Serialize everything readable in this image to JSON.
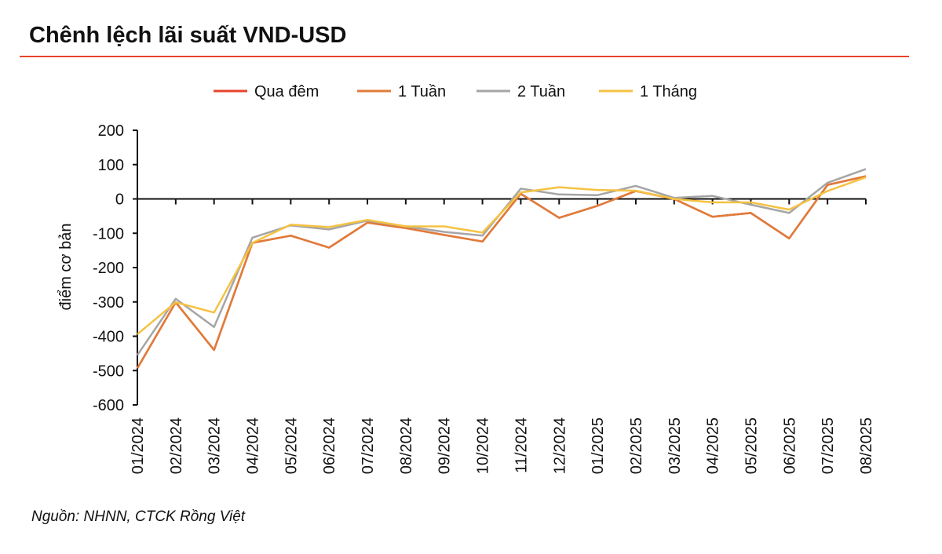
{
  "chart_data": {
    "type": "line",
    "title": "Chênh lệch lãi suất VND-USD",
    "ylabel": "điểm cơ bản",
    "xlabel": "",
    "ylim": [
      -600,
      200
    ],
    "yticks": [
      200,
      100,
      0,
      -100,
      -200,
      -300,
      -400,
      -500,
      -600
    ],
    "legend_position": "top",
    "grid": false,
    "categories": [
      "01/2024",
      "02/2024",
      "03/2024",
      "04/2024",
      "05/2024",
      "06/2024",
      "07/2024",
      "08/2024",
      "09/2024",
      "10/2024",
      "11/2024",
      "12/2024",
      "01/2025",
      "02/2025",
      "03/2025",
      "04/2025",
      "05/2025",
      "06/2025",
      "07/2025",
      "08/2025"
    ],
    "series": [
      {
        "name": "Qua đêm",
        "color": "#e8432d",
        "values": [
          -493,
          -301,
          -440,
          -128,
          -107,
          -142,
          -69,
          -85,
          -105,
          -124,
          15,
          -55,
          -20,
          23,
          0,
          -52,
          -41,
          -115,
          41,
          66
        ]
      },
      {
        "name": "1 Tuần",
        "color": "#e07b39",
        "values": [
          -493,
          -301,
          -440,
          -128,
          -107,
          -142,
          -69,
          -85,
          -105,
          -124,
          15,
          -55,
          -20,
          23,
          0,
          -52,
          -41,
          -115,
          41,
          66
        ]
      },
      {
        "name": "2 Tuần",
        "color": "#a5a5a5",
        "values": [
          -455,
          -291,
          -373,
          -113,
          -77,
          -89,
          -63,
          -80,
          -96,
          -107,
          30,
          13,
          11,
          38,
          3,
          9,
          -17,
          -41,
          47,
          87
        ]
      },
      {
        "name": "1 Tháng",
        "color": "#f5c242",
        "values": [
          -394,
          -301,
          -331,
          -128,
          -75,
          -82,
          -61,
          -80,
          -80,
          -98,
          19,
          34,
          26,
          24,
          0,
          -10,
          -10,
          -31,
          23,
          63
        ]
      }
    ]
  },
  "source": "Nguồn: NHNN, CTCK Rồng Việt",
  "accent_color": "#e8432d"
}
